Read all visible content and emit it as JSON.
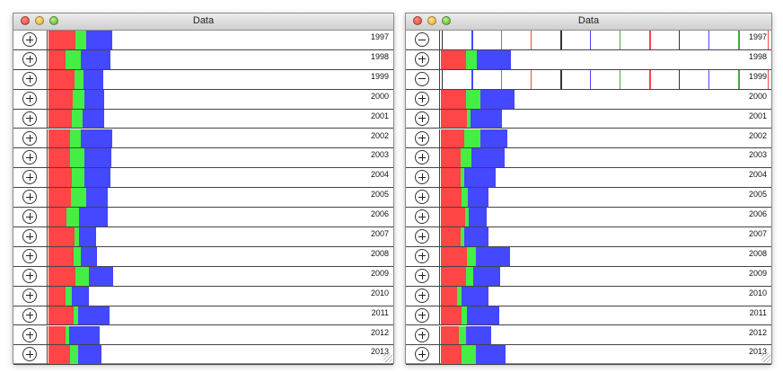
{
  "colors": {
    "red": "#ff4545",
    "green": "#44ee44",
    "blue": "#4448ff"
  },
  "icons": {
    "expand": "plus-circle-icon",
    "collapse": "minus-circle-icon"
  },
  "windows": [
    {
      "title": "Data",
      "rows": [
        {
          "year": "1997",
          "state": "collapsed",
          "red": 0.071,
          "green": 0.029,
          "blue": 0.067
        },
        {
          "year": "1998",
          "state": "collapsed",
          "red": 0.045,
          "green": 0.04,
          "blue": 0.079
        },
        {
          "year": "1999",
          "state": "collapsed",
          "red": 0.069,
          "green": 0.023,
          "blue": 0.052
        },
        {
          "year": "2000",
          "state": "collapsed",
          "red": 0.064,
          "green": 0.031,
          "blue": 0.052
        },
        {
          "year": "2001",
          "state": "collapsed",
          "red": 0.062,
          "green": 0.029,
          "blue": 0.055
        },
        {
          "year": "2002",
          "state": "collapsed",
          "red": 0.057,
          "green": 0.029,
          "blue": 0.081
        },
        {
          "year": "2003",
          "state": "collapsed",
          "red": 0.057,
          "green": 0.038,
          "blue": 0.071
        },
        {
          "year": "2004",
          "state": "collapsed",
          "red": 0.062,
          "green": 0.033,
          "blue": 0.069
        },
        {
          "year": "2005",
          "state": "collapsed",
          "red": 0.06,
          "green": 0.04,
          "blue": 0.057
        },
        {
          "year": "2006",
          "state": "collapsed",
          "red": 0.048,
          "green": 0.033,
          "blue": 0.076
        },
        {
          "year": "2007",
          "state": "collapsed",
          "red": 0.069,
          "green": 0.012,
          "blue": 0.045
        },
        {
          "year": "2008",
          "state": "collapsed",
          "red": 0.067,
          "green": 0.017,
          "blue": 0.043
        },
        {
          "year": "2009",
          "state": "collapsed",
          "red": 0.071,
          "green": 0.036,
          "blue": 0.064
        },
        {
          "year": "2010",
          "state": "collapsed",
          "red": 0.045,
          "green": 0.017,
          "blue": 0.045
        },
        {
          "year": "2011",
          "state": "collapsed",
          "red": 0.067,
          "green": 0.012,
          "blue": 0.081
        },
        {
          "year": "2012",
          "state": "collapsed",
          "red": 0.045,
          "green": 0.01,
          "blue": 0.079
        },
        {
          "year": "2013",
          "state": "collapsed",
          "red": 0.057,
          "green": 0.021,
          "blue": 0.062
        }
      ]
    },
    {
      "title": "Data",
      "rows": [
        {
          "year": "1997",
          "state": "expanded",
          "red": 0,
          "green": 0,
          "blue": 0
        },
        {
          "year": "1998",
          "state": "collapsed",
          "red": 0.069,
          "green": 0.029,
          "blue": 0.093
        },
        {
          "year": "1999",
          "state": "expanded",
          "red": 0,
          "green": 0,
          "blue": 0
        },
        {
          "year": "2000",
          "state": "collapsed",
          "red": 0.069,
          "green": 0.04,
          "blue": 0.093
        },
        {
          "year": "2001",
          "state": "collapsed",
          "red": 0.071,
          "green": 0.01,
          "blue": 0.086
        },
        {
          "year": "2002",
          "state": "collapsed",
          "red": 0.064,
          "green": 0.043,
          "blue": 0.074
        },
        {
          "year": "2003",
          "state": "collapsed",
          "red": 0.055,
          "green": 0.029,
          "blue": 0.091
        },
        {
          "year": "2004",
          "state": "collapsed",
          "red": 0.055,
          "green": 0.01,
          "blue": 0.086
        },
        {
          "year": "2005",
          "state": "collapsed",
          "red": 0.057,
          "green": 0.017,
          "blue": 0.057
        },
        {
          "year": "2006",
          "state": "collapsed",
          "red": 0.067,
          "green": 0.01,
          "blue": 0.048
        },
        {
          "year": "2007",
          "state": "collapsed",
          "red": 0.053,
          "green": 0.01,
          "blue": 0.067
        },
        {
          "year": "2008",
          "state": "collapsed",
          "red": 0.071,
          "green": 0.024,
          "blue": 0.093
        },
        {
          "year": "2009",
          "state": "collapsed",
          "red": 0.069,
          "green": 0.019,
          "blue": 0.074
        },
        {
          "year": "2010",
          "state": "collapsed",
          "red": 0.043,
          "green": 0.014,
          "blue": 0.074
        },
        {
          "year": "2011",
          "state": "collapsed",
          "red": 0.057,
          "green": 0.014,
          "blue": 0.088
        },
        {
          "year": "2012",
          "state": "collapsed",
          "red": 0.05,
          "green": 0.019,
          "blue": 0.069
        },
        {
          "year": "2013",
          "state": "collapsed",
          "red": 0.057,
          "green": 0.04,
          "blue": 0.081
        }
      ]
    }
  ]
}
